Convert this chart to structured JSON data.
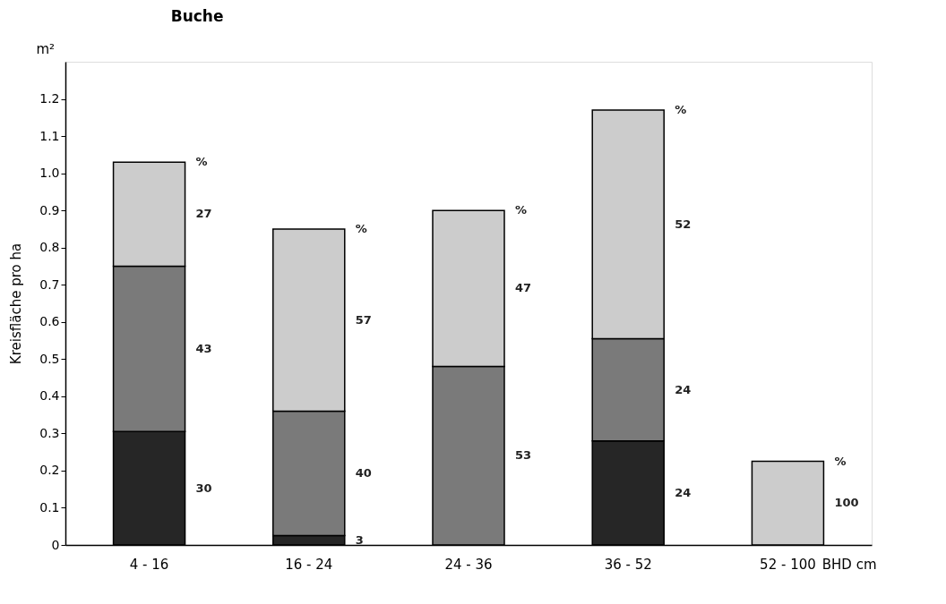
{
  "chart_data": {
    "type": "bar",
    "stacked": true,
    "title": "Buche",
    "ylabel": "Kreisfläche pro ha",
    "xlabel": "BHD cm",
    "annotations": [
      "m²",
      "30",
      "43",
      "27",
      "%",
      "3",
      "40",
      "57",
      "%",
      "53",
      "47",
      "%",
      "24",
      "24",
      "52",
      "%",
      "100",
      "%"
    ],
    "categories": [
      "4 - 16",
      "16 - 24",
      "24 - 36",
      "36 - 52",
      "52 - 100"
    ],
    "series": [
      {
        "color": "#262626",
        "values": [
          0.305,
          0.025,
          null,
          0.28,
          null
        ]
      },
      {
        "color": "#7a7a7a",
        "values": [
          0.445,
          0.335,
          0.48,
          0.275,
          null
        ]
      },
      {
        "color": "#cccccc",
        "values": [
          0.28,
          0.49,
          0.42,
          0.615,
          0.225
        ]
      }
    ],
    "ylim": [
      0,
      1.3
    ],
    "yticks": [
      0,
      0.1,
      0.2,
      0.3,
      0.4,
      0.5,
      0.6,
      0.7,
      0.8,
      0.9,
      {
        "value": 1.0,
        "label": "1.0"
      },
      1.1,
      1.2
    ],
    "grid": false
  }
}
